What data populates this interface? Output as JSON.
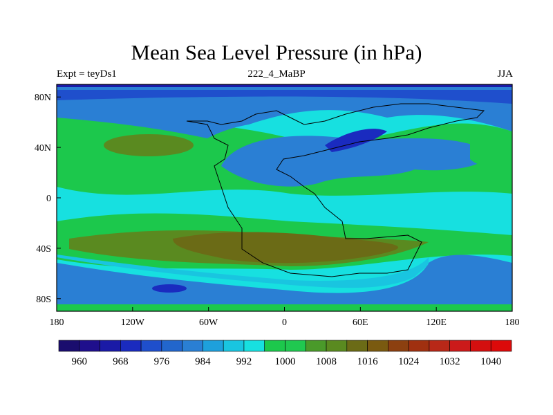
{
  "title": "Mean Sea Level Pressure (in hPa)",
  "subtitle_left": "Expt = teyDs1",
  "subtitle_center": "222_4_MaBP",
  "subtitle_right": "JJA",
  "x_tick_labels": [
    "180",
    "120W",
    "60W",
    "0",
    "60E",
    "120E",
    "180"
  ],
  "y_tick_labels": [
    "80N",
    "40N",
    "0",
    "40S",
    "80S"
  ],
  "colorbar": {
    "labels": [
      "960",
      "968",
      "976",
      "984",
      "992",
      "1000",
      "1008",
      "1016",
      "1024",
      "1032",
      "1040"
    ],
    "colors": [
      "#1a0d6e",
      "#1f0f8c",
      "#1a1aa6",
      "#1a2bbf",
      "#1f4fcc",
      "#2266cc",
      "#2a7fd4",
      "#1ea0dc",
      "#19c5e0",
      "#17e0e0",
      "#1cc84c",
      "#20c850",
      "#4a9a2a",
      "#5a8a20",
      "#6b6b16",
      "#7a5a10",
      "#8c4010",
      "#a03010",
      "#b82818",
      "#cc1a1a",
      "#d40f0f",
      "#dc0a0a"
    ]
  },
  "chart_data": {
    "type": "contour_map",
    "title": "Mean Sea Level Pressure (in hPa)",
    "units": "hPa",
    "experiment": "teyDs1",
    "period": "222_4_MaBP",
    "season": "JJA",
    "x_range": [
      -180,
      180
    ],
    "y_range": [
      -90,
      90
    ],
    "xticks": [
      -180,
      -120,
      -60,
      0,
      60,
      120,
      180
    ],
    "yticks": [
      80,
      40,
      0,
      -40,
      -80
    ],
    "levels": [
      960,
      968,
      976,
      984,
      992,
      1000,
      1008,
      1016,
      1024,
      1032,
      1040
    ]
  }
}
